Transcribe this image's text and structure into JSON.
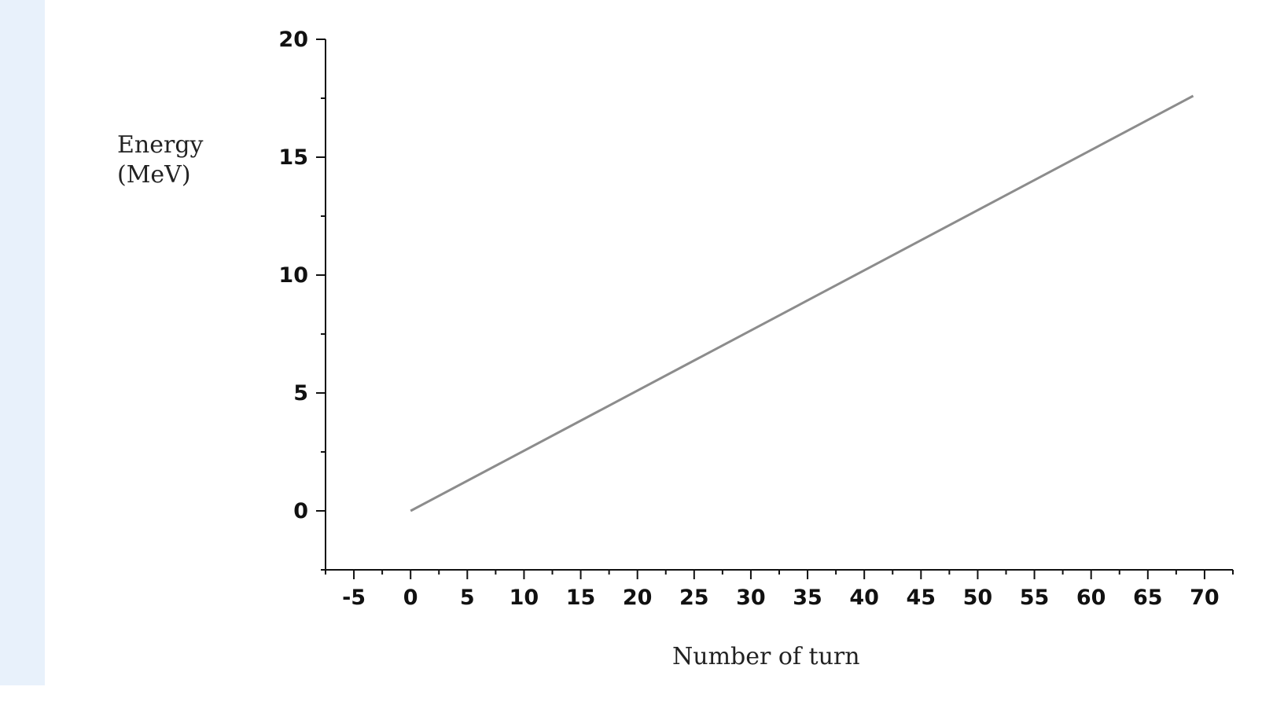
{
  "chart_data": {
    "type": "line",
    "title": "",
    "xlabel": "Number of turn",
    "ylabel_line1": "Energy",
    "ylabel_line2": "(MeV)",
    "xlim": [
      -7.5,
      72.5
    ],
    "ylim": [
      -2.5,
      20
    ],
    "x_ticks": [
      -5,
      0,
      5,
      10,
      15,
      20,
      25,
      30,
      35,
      40,
      45,
      50,
      55,
      60,
      65,
      70
    ],
    "y_ticks": [
      0,
      5,
      10,
      15,
      20
    ],
    "series": [
      {
        "x": [
          0,
          69
        ],
        "y": [
          0,
          17.6
        ]
      }
    ],
    "colors": {
      "line": "#8c8c8c",
      "axis": "#111111"
    }
  }
}
